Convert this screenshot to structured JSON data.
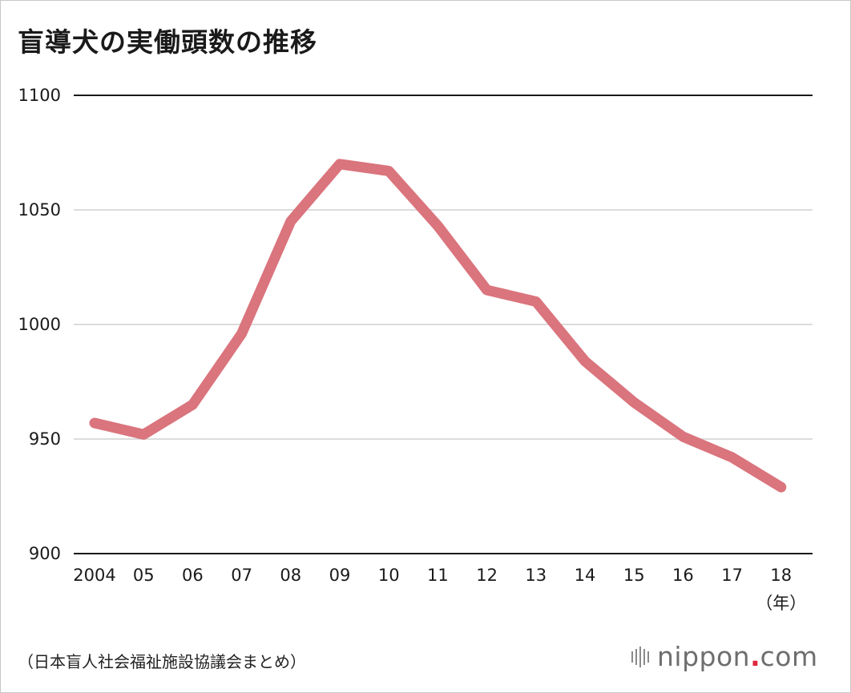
{
  "header": {
    "title": "盲導犬の実働頭数の推移"
  },
  "chart_data": {
    "type": "line",
    "title": "盲導犬の実働頭数の推移",
    "categories": [
      "2004",
      "05",
      "06",
      "07",
      "08",
      "09",
      "10",
      "11",
      "12",
      "13",
      "14",
      "15",
      "16",
      "17",
      "18"
    ],
    "series": [
      {
        "values": [
          957,
          952,
          965,
          996,
          1045,
          1070,
          1067,
          1043,
          1015,
          1010,
          984,
          966,
          951,
          942,
          929
        ]
      }
    ],
    "x_unit_label": "（年）",
    "ylim": [
      900,
      1100
    ],
    "y_ticks": [
      1100,
      1050,
      1000,
      950,
      900
    ],
    "grid": true,
    "line_color": "#da747d",
    "grid_color": "#d0d0d0",
    "axis_color": "#1a1a1a"
  },
  "footer": {
    "source": "（日本盲人社会福祉施設協議会まとめ）",
    "logo_text": "nippon",
    "logo_dot": ".",
    "logo_suffix": "com"
  }
}
